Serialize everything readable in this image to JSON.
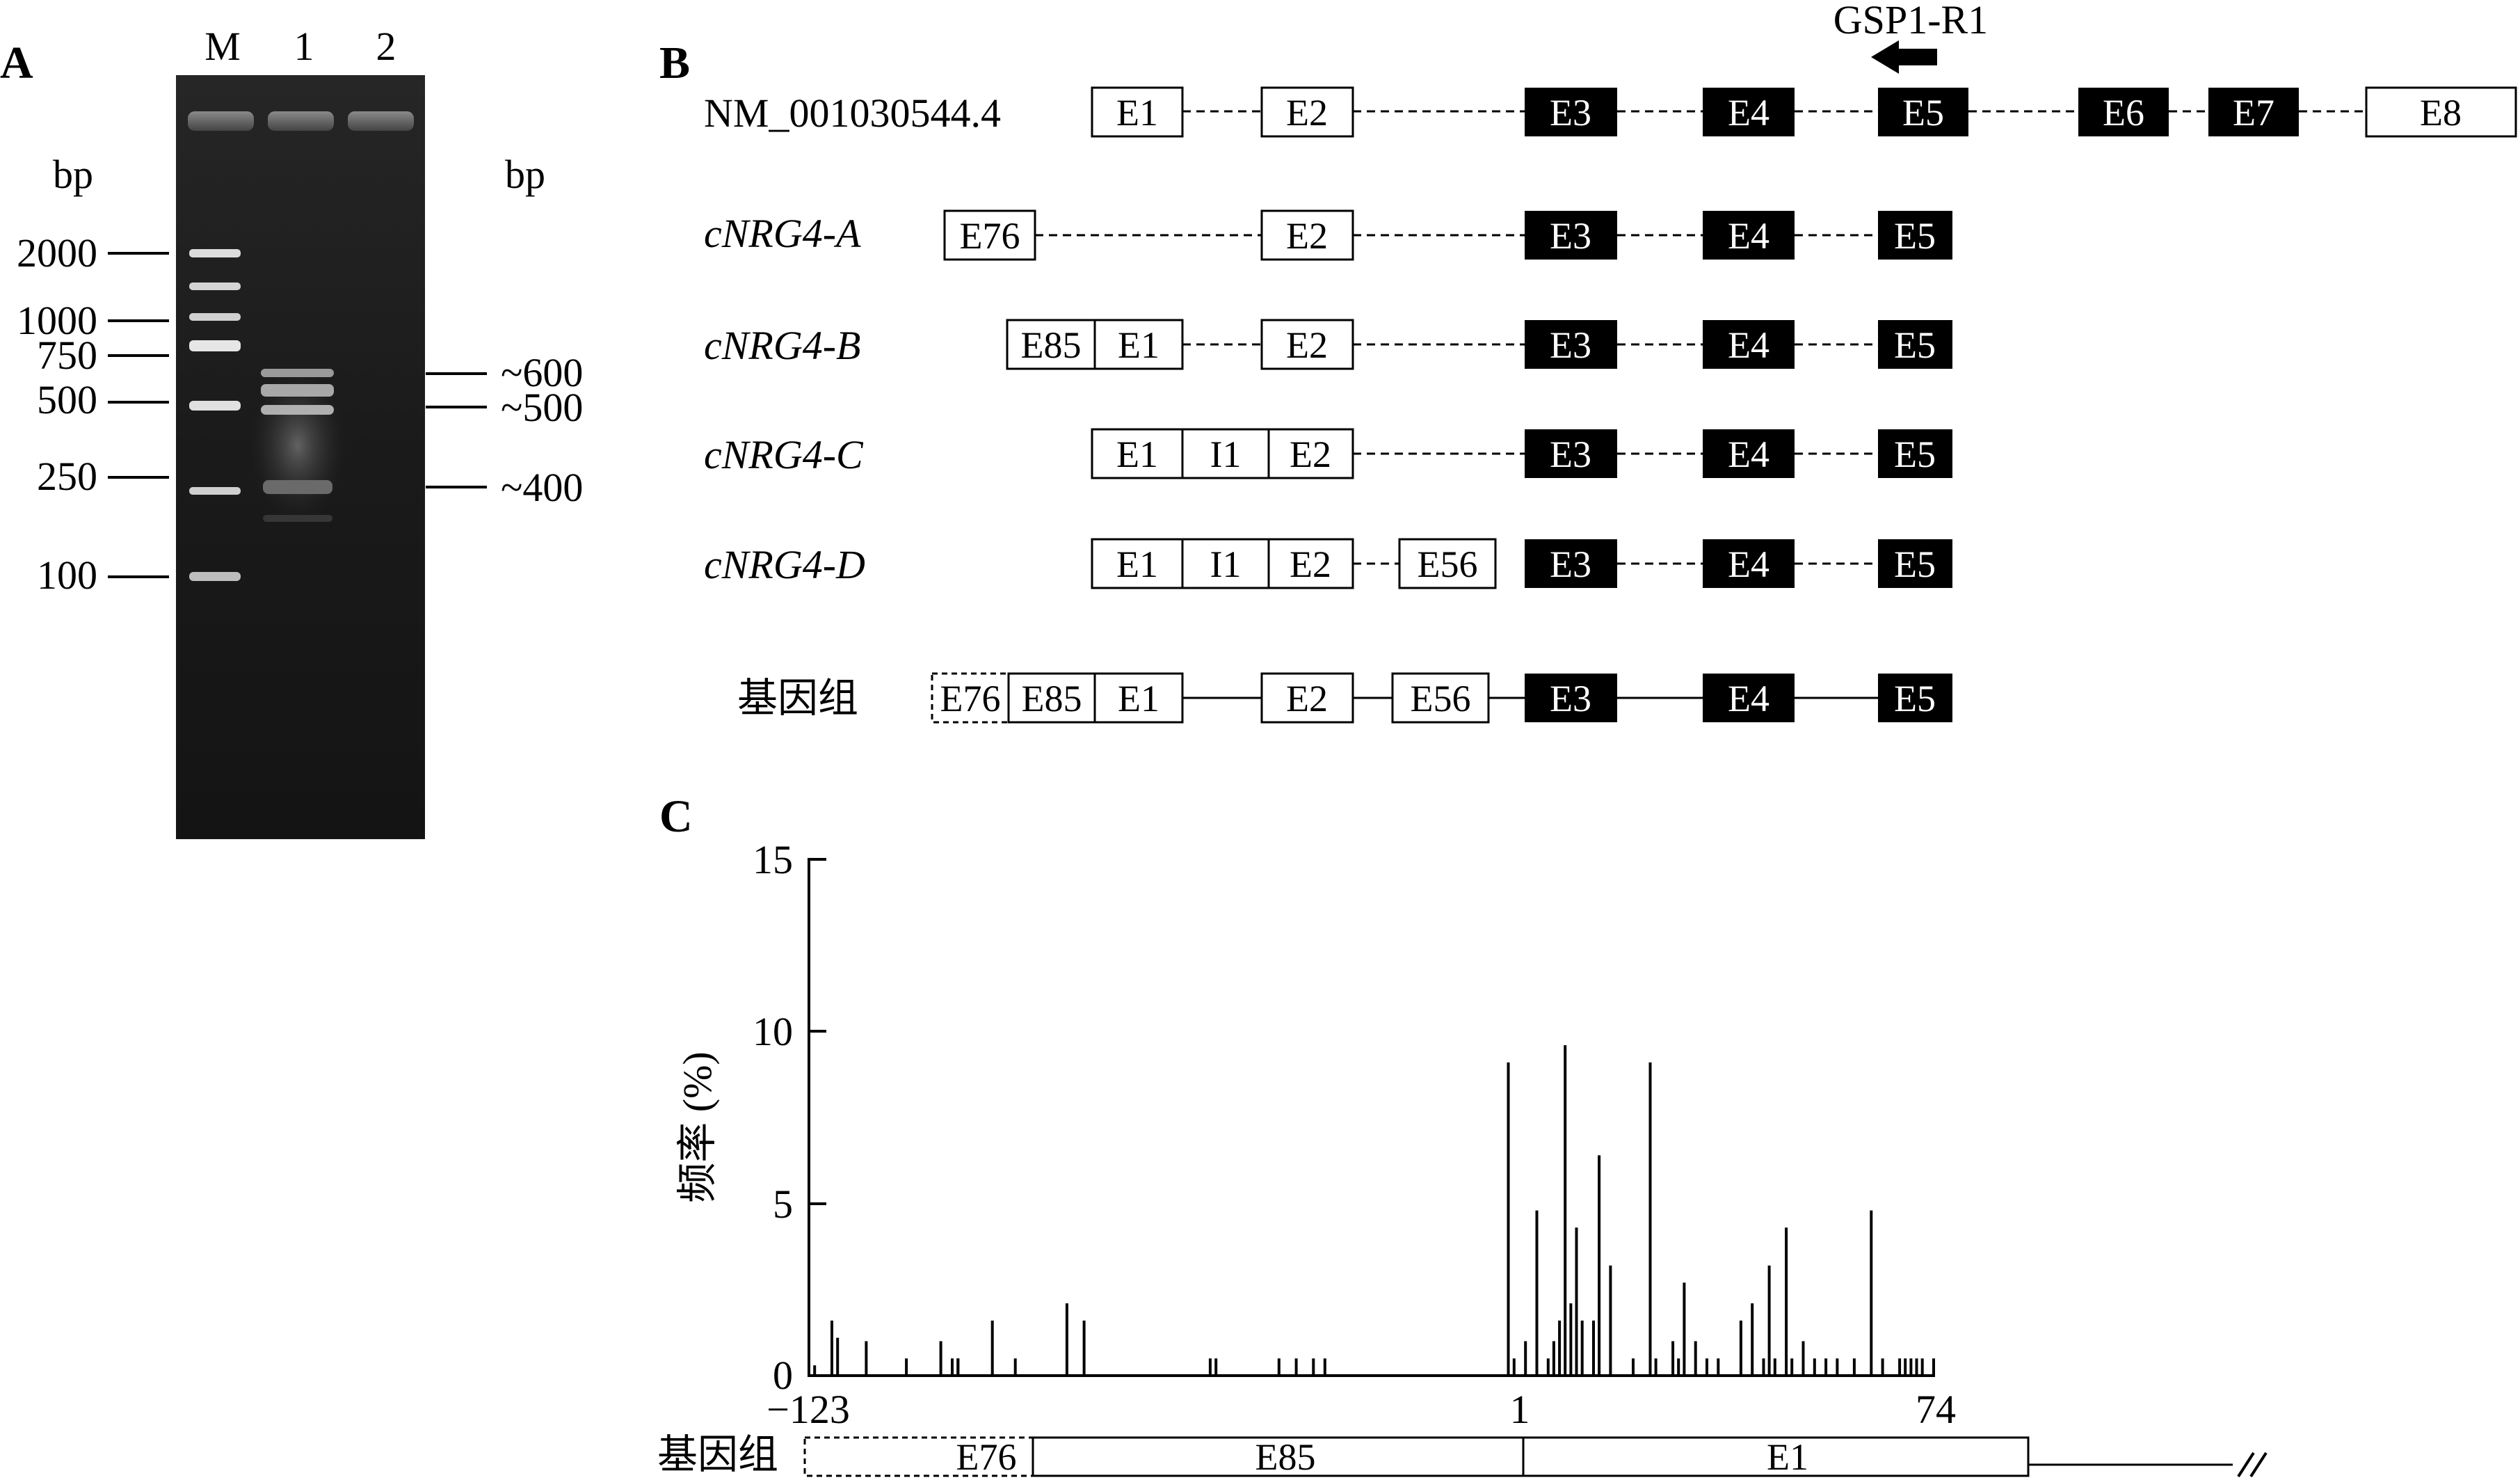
{
  "panels": {
    "A": {
      "letter": "A",
      "lane_labels": [
        "M",
        "1",
        "2"
      ],
      "left_unit": "bp",
      "right_unit": "bp",
      "ladder": [
        "2000",
        "1000",
        "750",
        "500",
        "250",
        "100"
      ],
      "bands": [
        "~600",
        "~500",
        "~400"
      ]
    },
    "B": {
      "letter": "B",
      "primer": "GSP1-R1",
      "rows": [
        {
          "name": "NM_001030544.4",
          "italic": false,
          "exons": [
            "E1",
            "E2",
            "E3",
            "E4",
            "E5",
            "E6",
            "E7",
            "E8"
          ]
        },
        {
          "name": "cNRG4-A",
          "italic": true,
          "exons": [
            "E76",
            "E2",
            "E3",
            "E4",
            "E5"
          ]
        },
        {
          "name": "cNRG4-B",
          "italic": true,
          "exons": [
            "E85",
            "E1",
            "E2",
            "E3",
            "E4",
            "E5"
          ]
        },
        {
          "name": "cNRG4-C",
          "italic": true,
          "exons": [
            "E1",
            "I1",
            "E2",
            "E3",
            "E4",
            "E5"
          ]
        },
        {
          "name": "cNRG4-D",
          "italic": true,
          "exons": [
            "E1",
            "I1",
            "E2",
            "E56",
            "E3",
            "E4",
            "E5"
          ]
        },
        {
          "name": "基因组",
          "italic": false,
          "exons": [
            "E76",
            "E85",
            "E1",
            "E2",
            "E56",
            "E3",
            "E4",
            "E5"
          ]
        }
      ]
    },
    "C": {
      "letter": "C"
    }
  },
  "chart_data": {
    "type": "bar",
    "title": "",
    "ylabel": "频率 (%)",
    "xlabel": "",
    "ylim": [
      0,
      15
    ],
    "yticks": [
      "0",
      "5",
      "10",
      "15"
    ],
    "xtick_labels": [
      "−123",
      "1",
      "74"
    ],
    "x": [
      -123,
      -122,
      -119,
      -118,
      -113,
      -106,
      -100,
      -98,
      -97,
      -97,
      -91,
      -87,
      -78,
      -75,
      -53,
      -52,
      -41,
      -38,
      -35,
      -33,
      -1,
      0,
      2,
      4,
      6,
      7,
      8,
      9,
      10,
      11,
      12,
      14,
      15,
      17,
      21,
      24,
      25,
      28,
      29,
      30,
      32,
      34,
      36,
      40,
      42,
      44,
      45,
      46,
      48,
      49,
      51,
      53,
      55,
      57,
      60,
      63,
      65,
      68,
      69,
      70,
      71,
      72,
      74
    ],
    "values": [
      1.1,
      0.3,
      1.6,
      1.1,
      1.0,
      0.5,
      1.0,
      0.5,
      0.5,
      0.5,
      1.6,
      0.5,
      2.1,
      1.6,
      0.5,
      0.5,
      0.5,
      0.5,
      0.5,
      0.5,
      9.1,
      0.5,
      1.0,
      4.8,
      0.5,
      1.0,
      1.6,
      9.6,
      2.1,
      4.3,
      1.6,
      1.6,
      6.4,
      3.2,
      0.5,
      9.1,
      0.5,
      1.0,
      0.5,
      2.7,
      1.0,
      0.5,
      0.5,
      1.6,
      2.1,
      0.5,
      3.2,
      0.5,
      4.3,
      0.5,
      1.0,
      0.5,
      0.5,
      0.5,
      0.5,
      4.8,
      0.5,
      0.5,
      0.5,
      0.5,
      0.5,
      0.5,
      0.5
    ],
    "bottom_track": {
      "label": "基因组",
      "segments": [
        "E76",
        "E85",
        "E1"
      ]
    }
  }
}
